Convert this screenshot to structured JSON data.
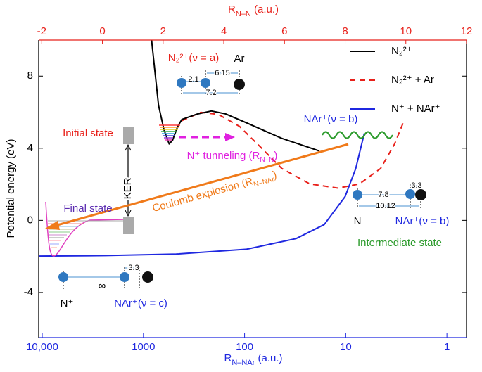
{
  "chart_data": {
    "type": "line",
    "ylabel": "Potential energy (eV)",
    "ylim": [
      -6.5,
      10
    ],
    "yticks": [
      -4,
      0,
      4,
      8
    ],
    "xlabel": {
      "main": "R",
      "sub": "N–N",
      "unit": " (a.u.)"
    },
    "xlim": [
      -2.1,
      12
    ],
    "xticks": [
      -2,
      0,
      2,
      4,
      6,
      8,
      10,
      12
    ],
    "x_color": "#e8201a",
    "x2label": {
      "main": "R",
      "sub": "N–NAr",
      "unit": " (a.u.)"
    },
    "x2scale": "log",
    "x2lim": [
      10840,
      0.64
    ],
    "x2ticks": [
      {
        "value": 10000,
        "label": "10,000"
      },
      1000,
      100,
      10,
      1
    ],
    "x2_color": "#1f28e0",
    "series": [
      {
        "name": "N₂²⁺",
        "color": "#000000",
        "linestyle": "solid",
        "x": [
          1.62,
          1.85,
          2.03,
          2.2,
          2.31,
          2.48,
          2.62,
          3.13,
          3.59,
          4.06,
          4.75,
          5.91,
          7.15
        ],
        "values": [
          10,
          6.38,
          5.02,
          4.24,
          4.44,
          5.21,
          5.6,
          5.9,
          6.07,
          5.91,
          5.41,
          4.55,
          3.85
        ]
      },
      {
        "name": "N₂²⁺ + Ar",
        "color": "#e8201a",
        "linestyle": "dashed",
        "x": [
          2.62,
          3.24,
          3.82,
          4.52,
          5.22,
          5.91,
          6.84,
          7.77,
          8.47,
          9.17,
          9.63,
          9.91
        ],
        "values": [
          5.53,
          5.99,
          5.88,
          5.21,
          4.05,
          2.88,
          2.02,
          1.79,
          2.02,
          2.88,
          4.24,
          5.41
        ]
      },
      {
        "name": "N⁺ + NAr⁺",
        "color": "#1f28e0",
        "linestyle": "solid",
        "x": [
          -2.1,
          0.11,
          2.43,
          4.75,
          6.38,
          7.31,
          8.0,
          8.35,
          8.63
        ],
        "values": [
          -1.98,
          -1.95,
          -1.87,
          -1.6,
          -1.01,
          -0.23,
          1.32,
          2.88,
          4.82
        ]
      }
    ],
    "annotations": {
      "initial_state": "Initial state",
      "final_state": "Final state",
      "intermediate_state": "Intermediate state",
      "ker": "KER",
      "n2_state": "N₂²⁺(ν = a)",
      "ar": "Ar",
      "nar_b_upper": "NAr⁺(ν = b)",
      "tunneling": {
        "main": "N⁺ tunneling  (R",
        "sub": "N–N",
        "close": ")"
      },
      "coulomb": {
        "main": "Coulomb explosion  (R",
        "sub": "N–NAr",
        "close": ")"
      },
      "mol1": {
        "d1": 2.1,
        "d2": 6.15,
        "d3": 7.2
      },
      "mol2": {
        "d1": 7.8,
        "d2": 3.3,
        "d3": 10.12,
        "n": "N⁺",
        "nar": "NAr⁺(ν = b)"
      },
      "mol3": {
        "d1": "∞",
        "d2": 3.3,
        "n": "N⁺",
        "nar": "NAr⁺(ν = c)"
      }
    }
  }
}
